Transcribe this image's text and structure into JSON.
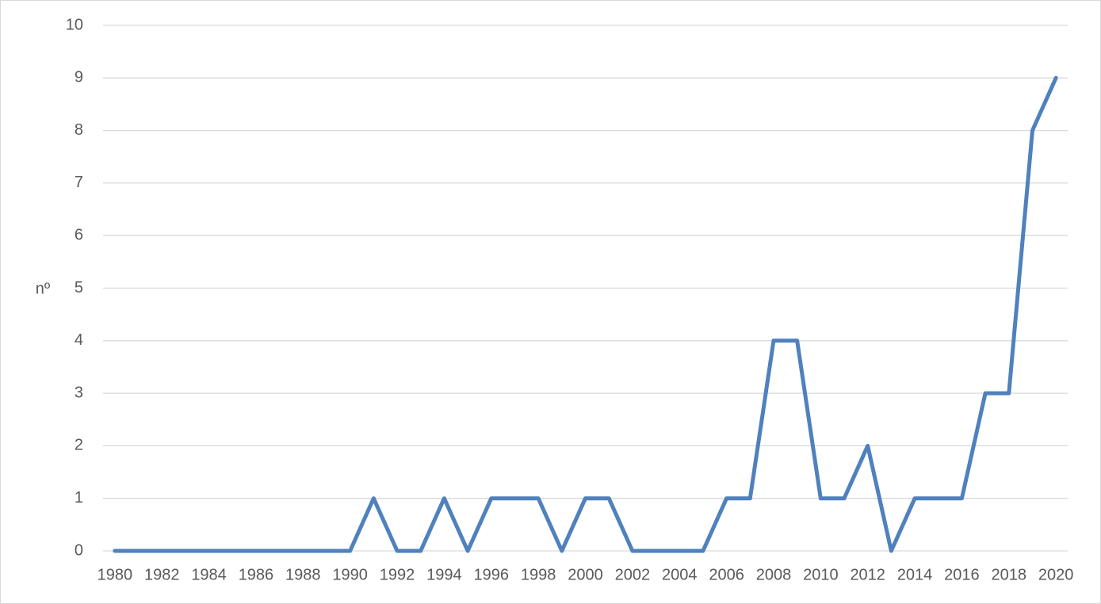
{
  "chart_data": {
    "type": "line",
    "y_label": "nº",
    "categories": [
      "1980",
      null,
      "1982",
      null,
      "1984",
      null,
      "1986",
      null,
      "1988",
      null,
      "1990",
      null,
      "1992",
      null,
      "1994",
      null,
      "1996",
      null,
      "1998",
      null,
      "2000",
      null,
      "2002",
      null,
      "2004",
      null,
      "2006",
      null,
      "2008",
      null,
      "2010",
      null,
      "2012",
      null,
      "2014",
      null,
      "2016",
      null,
      "2018",
      null,
      "2020"
    ],
    "series": [
      {
        "color": "#4f81bd",
        "values": [
          0,
          0,
          0,
          0,
          0,
          0,
          0,
          0,
          0,
          0,
          0,
          1,
          0,
          0,
          1,
          0,
          1,
          1,
          1,
          0,
          1,
          1,
          0,
          0,
          0,
          0,
          1,
          1,
          4,
          4,
          1,
          1,
          2,
          0,
          1,
          1,
          1,
          3,
          3,
          8,
          9
        ]
      }
    ],
    "ylim": [
      0,
      10
    ],
    "yticks": [
      0,
      1,
      2,
      3,
      4,
      5,
      6,
      7,
      8,
      9,
      10
    ],
    "grid": true
  }
}
